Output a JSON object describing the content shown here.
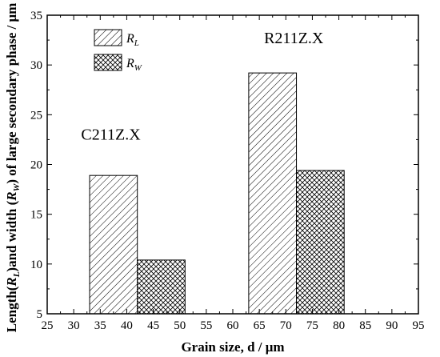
{
  "chart_data": {
    "type": "bar",
    "xlabel": "Grain size, d / μm",
    "ylabel_parts": [
      "Length(",
      "R",
      "L",
      ")and width (",
      "R",
      "W",
      ") of large secondary phase / μm"
    ],
    "xlim": [
      25,
      95
    ],
    "ylim": [
      5,
      35
    ],
    "xticks": [
      "25",
      "30",
      "35",
      "40",
      "45",
      "50",
      "55",
      "60",
      "65",
      "70",
      "75",
      "80",
      "85",
      "90",
      "95"
    ],
    "yticks": [
      "5",
      "10",
      "15",
      "20",
      "25",
      "30",
      "35"
    ],
    "legend_position": "top-left",
    "series": [
      {
        "name_main": "R",
        "name_sub": "L",
        "pattern": "diagonal-hatch",
        "bars": [
          {
            "x0": 33.0,
            "x1": 42.0,
            "value": 18.9
          },
          {
            "x0": 63.0,
            "x1": 72.0,
            "value": 29.2
          }
        ]
      },
      {
        "name_main": "R",
        "name_sub": "W",
        "pattern": "cross-hatch",
        "bars": [
          {
            "x0": 42.0,
            "x1": 51.0,
            "value": 10.4
          },
          {
            "x0": 72.0,
            "x1": 81.0,
            "value": 19.4
          }
        ]
      }
    ],
    "annotations": [
      {
        "text": "C211Z.X",
        "x": 37.0,
        "y": 22.5
      },
      {
        "text": "R211Z.X",
        "x": 71.5,
        "y": 32.2
      }
    ]
  }
}
